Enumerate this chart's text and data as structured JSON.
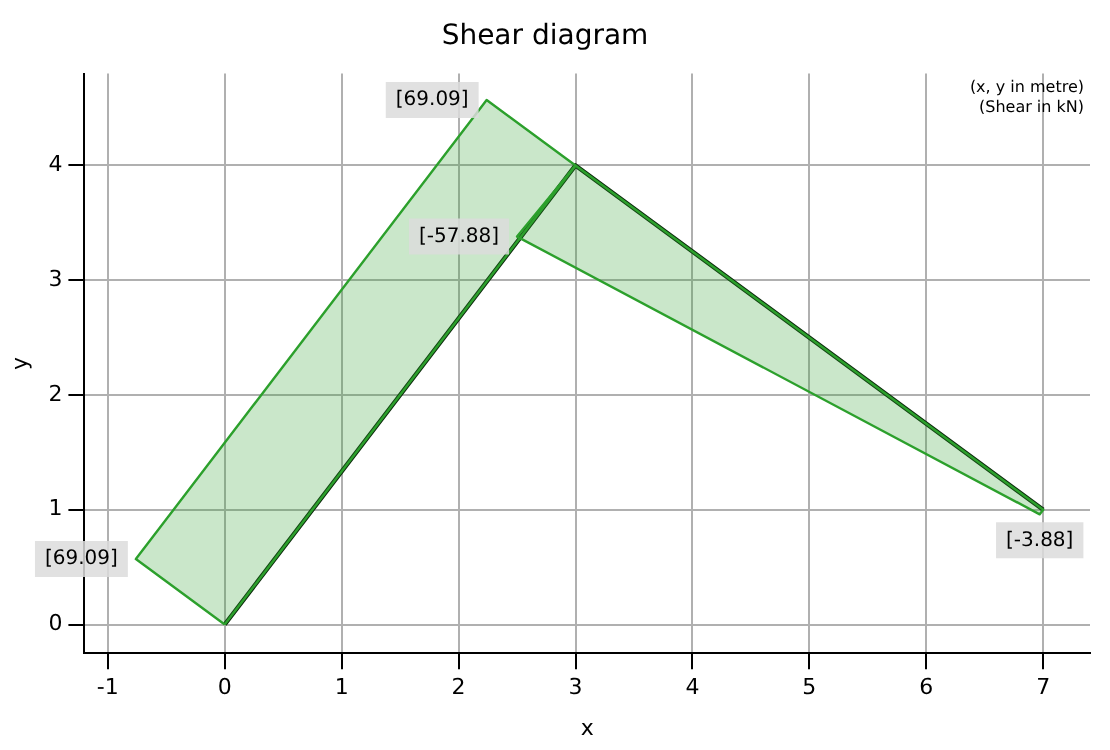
{
  "chart_data": {
    "type": "line",
    "title": "Shear diagram",
    "xlabel": "x",
    "ylabel": "y",
    "series": [
      {
        "type": "area",
        "color": "#2ca02c",
        "x": [
          0,
          -0.76,
          2.24,
          3,
          0
        ],
        "values": [
          0,
          0.57,
          4.57,
          4,
          0
        ]
      },
      {
        "type": "area",
        "color": "#2ca02c",
        "x": [
          3,
          2.5,
          6.97,
          7,
          3
        ],
        "values": [
          4,
          3.38,
          0.96,
          1,
          4
        ]
      },
      {
        "color": "#0d2b0d",
        "x": [
          0,
          3,
          7
        ],
        "values": [
          0,
          4,
          1
        ]
      }
    ],
    "annotations": [
      "(x, y in metre)",
      "(Shear in kN)",
      {
        "text": "[69.09]",
        "x": -0.76,
        "y": 0.57
      },
      {
        "text": "[69.09]",
        "x": 2.24,
        "y": 4.57
      },
      {
        "text": "[-57.88]",
        "x": 2.5,
        "y": 3.38
      },
      {
        "text": "[-3.88]",
        "x": 6.97,
        "y": 0.96
      }
    ],
    "xlim": [
      -1.2,
      7.4
    ],
    "xticks": [
      -1,
      0,
      1,
      2,
      3,
      4,
      5,
      6,
      7
    ],
    "ylim": [
      -0.25,
      4.8
    ],
    "yticks": [
      0,
      1,
      2,
      3,
      4
    ],
    "grid": true,
    "marker": "none",
    "legend": false
  }
}
